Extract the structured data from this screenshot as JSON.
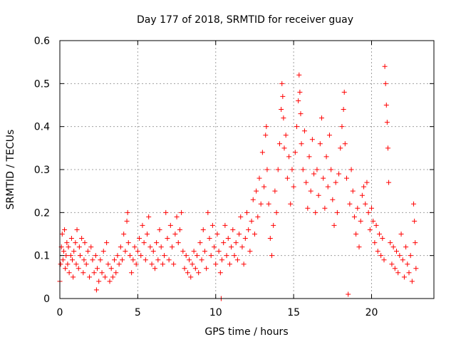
{
  "chart_data": {
    "type": "scatter",
    "title": "Day 177 of 2018, SRMTID for receiver guay",
    "xlabel": "GPS time / hours",
    "ylabel": "SRMTID / TECUs",
    "xlim": [
      0,
      24
    ],
    "ylim": [
      0,
      0.6
    ],
    "xticks": [
      0,
      5,
      10,
      15,
      20
    ],
    "xtick_labels": [
      "0",
      "5",
      "10",
      "15",
      "20"
    ],
    "yticks": [
      0,
      0.1,
      0.2,
      0.3,
      0.4,
      0.5,
      0.6
    ],
    "ytick_labels": [
      "0",
      "0.1",
      "0.2",
      "0.3",
      "0.4",
      "0.5",
      "0.6"
    ],
    "grid": true,
    "marker": "+",
    "color": "#ff0000",
    "series": [
      {
        "name": "SRMTID",
        "points": [
          [
            0.0,
            0.04
          ],
          [
            0.05,
            0.08
          ],
          [
            0.1,
            0.12
          ],
          [
            0.15,
            0.15
          ],
          [
            0.2,
            0.09
          ],
          [
            0.25,
            0.11
          ],
          [
            0.3,
            0.16
          ],
          [
            0.35,
            0.07
          ],
          [
            0.4,
            0.1
          ],
          [
            0.45,
            0.13
          ],
          [
            0.5,
            0.08
          ],
          [
            0.55,
            0.12
          ],
          [
            0.6,
            0.06
          ],
          [
            0.7,
            0.1
          ],
          [
            0.75,
            0.14
          ],
          [
            0.8,
            0.09
          ],
          [
            0.85,
            0.05
          ],
          [
            0.9,
            0.11
          ],
          [
            1.0,
            0.13
          ],
          [
            1.05,
            0.08
          ],
          [
            1.1,
            0.16
          ],
          [
            1.2,
            0.07
          ],
          [
            1.25,
            0.12
          ],
          [
            1.3,
            0.1
          ],
          [
            1.4,
            0.14
          ],
          [
            1.5,
            0.06
          ],
          [
            1.55,
            0.09
          ],
          [
            1.6,
            0.13
          ],
          [
            1.7,
            0.08
          ],
          [
            1.8,
            0.11
          ],
          [
            1.9,
            0.05
          ],
          [
            2.0,
            0.12
          ],
          [
            2.1,
            0.09
          ],
          [
            2.2,
            0.06
          ],
          [
            2.3,
            0.1
          ],
          [
            2.35,
            0.02
          ],
          [
            2.4,
            0.07
          ],
          [
            2.5,
            0.04
          ],
          [
            2.6,
            0.09
          ],
          [
            2.7,
            0.06
          ],
          [
            2.8,
            0.11
          ],
          [
            2.9,
            0.05
          ],
          [
            3.0,
            0.13
          ],
          [
            3.1,
            0.08
          ],
          [
            3.2,
            0.04
          ],
          [
            3.3,
            0.07
          ],
          [
            3.4,
            0.05
          ],
          [
            3.5,
            0.09
          ],
          [
            3.6,
            0.06
          ],
          [
            3.7,
            0.1
          ],
          [
            3.8,
            0.08
          ],
          [
            3.9,
            0.12
          ],
          [
            4.0,
            0.09
          ],
          [
            4.1,
            0.15
          ],
          [
            4.2,
            0.11
          ],
          [
            4.3,
            0.18
          ],
          [
            4.35,
            0.2
          ],
          [
            4.4,
            0.13
          ],
          [
            4.5,
            0.1
          ],
          [
            4.6,
            0.06
          ],
          [
            4.7,
            0.09
          ],
          [
            4.8,
            0.12
          ],
          [
            4.9,
            0.08
          ],
          [
            5.0,
            0.11
          ],
          [
            5.1,
            0.14
          ],
          [
            5.2,
            0.1
          ],
          [
            5.3,
            0.17
          ],
          [
            5.4,
            0.13
          ],
          [
            5.5,
            0.09
          ],
          [
            5.6,
            0.15
          ],
          [
            5.7,
            0.19
          ],
          [
            5.8,
            0.12
          ],
          [
            5.9,
            0.08
          ],
          [
            6.0,
            0.11
          ],
          [
            6.1,
            0.07
          ],
          [
            6.2,
            0.13
          ],
          [
            6.3,
            0.09
          ],
          [
            6.4,
            0.16
          ],
          [
            6.5,
            0.12
          ],
          [
            6.6,
            0.08
          ],
          [
            6.7,
            0.1
          ],
          [
            6.8,
            0.2
          ],
          [
            6.9,
            0.14
          ],
          [
            7.0,
            0.09
          ],
          [
            7.1,
            0.17
          ],
          [
            7.2,
            0.12
          ],
          [
            7.3,
            0.08
          ],
          [
            7.4,
            0.15
          ],
          [
            7.5,
            0.19
          ],
          [
            7.6,
            0.13
          ],
          [
            7.7,
            0.16
          ],
          [
            7.8,
            0.2
          ],
          [
            7.9,
            0.11
          ],
          [
            8.0,
            0.07
          ],
          [
            8.1,
            0.1
          ],
          [
            8.2,
            0.06
          ],
          [
            8.3,
            0.09
          ],
          [
            8.4,
            0.05
          ],
          [
            8.5,
            0.08
          ],
          [
            8.6,
            0.11
          ],
          [
            8.7,
            0.07
          ],
          [
            8.8,
            0.1
          ],
          [
            8.9,
            0.06
          ],
          [
            9.0,
            0.13
          ],
          [
            9.1,
            0.09
          ],
          [
            9.2,
            0.16
          ],
          [
            9.3,
            0.11
          ],
          [
            9.4,
            0.07
          ],
          [
            9.5,
            0.2
          ],
          [
            9.6,
            0.14
          ],
          [
            9.7,
            0.1
          ],
          [
            9.8,
            0.17
          ],
          [
            9.9,
            0.12
          ],
          [
            10.0,
            0.08
          ],
          [
            10.1,
            0.15
          ],
          [
            10.2,
            0.11
          ],
          [
            10.3,
            0.06
          ],
          [
            10.35,
            0.0
          ],
          [
            10.4,
            0.09
          ],
          [
            10.5,
            0.13
          ],
          [
            10.6,
            0.17
          ],
          [
            10.7,
            0.1
          ],
          [
            10.8,
            0.14
          ],
          [
            10.9,
            0.08
          ],
          [
            11.0,
            0.12
          ],
          [
            11.1,
            0.16
          ],
          [
            11.2,
            0.1
          ],
          [
            11.3,
            0.13
          ],
          [
            11.4,
            0.09
          ],
          [
            11.5,
            0.15
          ],
          [
            11.6,
            0.19
          ],
          [
            11.7,
            0.12
          ],
          [
            11.8,
            0.08
          ],
          [
            11.9,
            0.14
          ],
          [
            12.0,
            0.2
          ],
          [
            12.1,
            0.16
          ],
          [
            12.2,
            0.11
          ],
          [
            12.3,
            0.18
          ],
          [
            12.4,
            0.23
          ],
          [
            12.5,
            0.15
          ],
          [
            12.6,
            0.25
          ],
          [
            12.7,
            0.19
          ],
          [
            12.8,
            0.28
          ],
          [
            12.9,
            0.22
          ],
          [
            13.0,
            0.34
          ],
          [
            13.1,
            0.26
          ],
          [
            13.2,
            0.38
          ],
          [
            13.25,
            0.4
          ],
          [
            13.3,
            0.3
          ],
          [
            13.4,
            0.22
          ],
          [
            13.5,
            0.14
          ],
          [
            13.6,
            0.1
          ],
          [
            13.7,
            0.17
          ],
          [
            13.8,
            0.25
          ],
          [
            13.9,
            0.2
          ],
          [
            14.0,
            0.3
          ],
          [
            14.1,
            0.36
          ],
          [
            14.2,
            0.44
          ],
          [
            14.25,
            0.5
          ],
          [
            14.3,
            0.47
          ],
          [
            14.35,
            0.42
          ],
          [
            14.4,
            0.35
          ],
          [
            14.5,
            0.38
          ],
          [
            14.6,
            0.28
          ],
          [
            14.7,
            0.33
          ],
          [
            14.8,
            0.22
          ],
          [
            14.9,
            0.3
          ],
          [
            15.0,
            0.26
          ],
          [
            15.1,
            0.34
          ],
          [
            15.2,
            0.4
          ],
          [
            15.3,
            0.46
          ],
          [
            15.35,
            0.52
          ],
          [
            15.4,
            0.48
          ],
          [
            15.45,
            0.43
          ],
          [
            15.5,
            0.36
          ],
          [
            15.6,
            0.3
          ],
          [
            15.7,
            0.39
          ],
          [
            15.8,
            0.27
          ],
          [
            15.9,
            0.21
          ],
          [
            16.0,
            0.33
          ],
          [
            16.1,
            0.25
          ],
          [
            16.2,
            0.37
          ],
          [
            16.3,
            0.29
          ],
          [
            16.4,
            0.2
          ],
          [
            16.5,
            0.3
          ],
          [
            16.6,
            0.24
          ],
          [
            16.7,
            0.36
          ],
          [
            16.8,
            0.42
          ],
          [
            16.9,
            0.28
          ],
          [
            17.0,
            0.21
          ],
          [
            17.1,
            0.33
          ],
          [
            17.2,
            0.26
          ],
          [
            17.3,
            0.38
          ],
          [
            17.4,
            0.3
          ],
          [
            17.5,
            0.23
          ],
          [
            17.6,
            0.17
          ],
          [
            17.7,
            0.27
          ],
          [
            17.8,
            0.2
          ],
          [
            17.9,
            0.29
          ],
          [
            18.0,
            0.35
          ],
          [
            18.1,
            0.4
          ],
          [
            18.2,
            0.44
          ],
          [
            18.25,
            0.48
          ],
          [
            18.3,
            0.36
          ],
          [
            18.4,
            0.28
          ],
          [
            18.5,
            0.01
          ],
          [
            18.6,
            0.22
          ],
          [
            18.7,
            0.3
          ],
          [
            18.8,
            0.25
          ],
          [
            18.9,
            0.19
          ],
          [
            19.0,
            0.15
          ],
          [
            19.1,
            0.21
          ],
          [
            19.2,
            0.12
          ],
          [
            19.3,
            0.18
          ],
          [
            19.4,
            0.24
          ],
          [
            19.5,
            0.26
          ],
          [
            19.6,
            0.22
          ],
          [
            19.7,
            0.27
          ],
          [
            19.8,
            0.2
          ],
          [
            19.9,
            0.16
          ],
          [
            20.0,
            0.21
          ],
          [
            20.1,
            0.18
          ],
          [
            20.2,
            0.13
          ],
          [
            20.3,
            0.17
          ],
          [
            20.4,
            0.11
          ],
          [
            20.5,
            0.15
          ],
          [
            20.6,
            0.1
          ],
          [
            20.7,
            0.14
          ],
          [
            20.8,
            0.09
          ],
          [
            20.85,
            0.54
          ],
          [
            20.9,
            0.5
          ],
          [
            20.95,
            0.45
          ],
          [
            21.0,
            0.41
          ],
          [
            21.05,
            0.35
          ],
          [
            21.1,
            0.27
          ],
          [
            21.2,
            0.13
          ],
          [
            21.3,
            0.08
          ],
          [
            21.4,
            0.12
          ],
          [
            21.5,
            0.07
          ],
          [
            21.6,
            0.11
          ],
          [
            21.7,
            0.06
          ],
          [
            21.8,
            0.1
          ],
          [
            21.9,
            0.15
          ],
          [
            22.0,
            0.09
          ],
          [
            22.1,
            0.05
          ],
          [
            22.2,
            0.12
          ],
          [
            22.3,
            0.08
          ],
          [
            22.4,
            0.06
          ],
          [
            22.5,
            0.1
          ],
          [
            22.6,
            0.04
          ],
          [
            22.7,
            0.22
          ],
          [
            22.75,
            0.18
          ],
          [
            22.8,
            0.13
          ],
          [
            22.85,
            0.07
          ]
        ]
      }
    ]
  }
}
